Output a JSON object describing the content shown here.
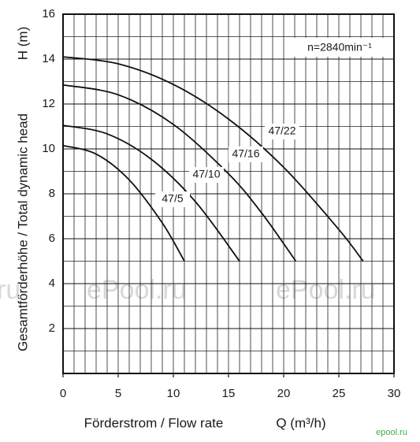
{
  "chart_data": {
    "type": "line",
    "y_label_top": "H (m)",
    "y_label": "Gesamtförderhöhe  /  Total dynamic head",
    "x_label": "Förderstrom  /  Flow rate",
    "x_unit_label": "Q (m³/h)",
    "annotation": "n=2840min⁻¹",
    "watermarks": [
      "ePool.ru",
      "ePool.ru",
      "ru"
    ],
    "logo": "epool.ru",
    "xlim": [
      0,
      30
    ],
    "xticks": [
      0,
      5,
      10,
      15,
      20,
      25,
      30
    ],
    "ylim": [
      0,
      16
    ],
    "yticks": [
      2,
      4,
      6,
      8,
      10,
      12,
      14,
      16
    ],
    "grid": true,
    "series": [
      {
        "name": "47/22",
        "color": "#111111",
        "x": [
          0,
          5,
          10,
          15,
          20,
          25,
          27.2
        ],
        "values": [
          14.1,
          13.79,
          12.87,
          11.33,
          9.18,
          6.41,
          5.0
        ]
      },
      {
        "name": "47/16",
        "color": "#111111",
        "x": [
          0,
          5,
          10,
          15,
          18,
          21.1
        ],
        "values": [
          12.85,
          12.41,
          11.09,
          8.89,
          7.15,
          5.0
        ]
      },
      {
        "name": "47/10",
        "color": "#111111",
        "x": [
          0,
          4,
          8,
          12,
          16
        ],
        "values": [
          11.05,
          10.67,
          9.54,
          7.65,
          5.0
        ]
      },
      {
        "name": "47/5",
        "color": "#111111",
        "x": [
          0,
          3,
          6,
          9,
          11
        ],
        "values": [
          10.15,
          9.77,
          8.62,
          6.7,
          5.0
        ]
      }
    ]
  }
}
